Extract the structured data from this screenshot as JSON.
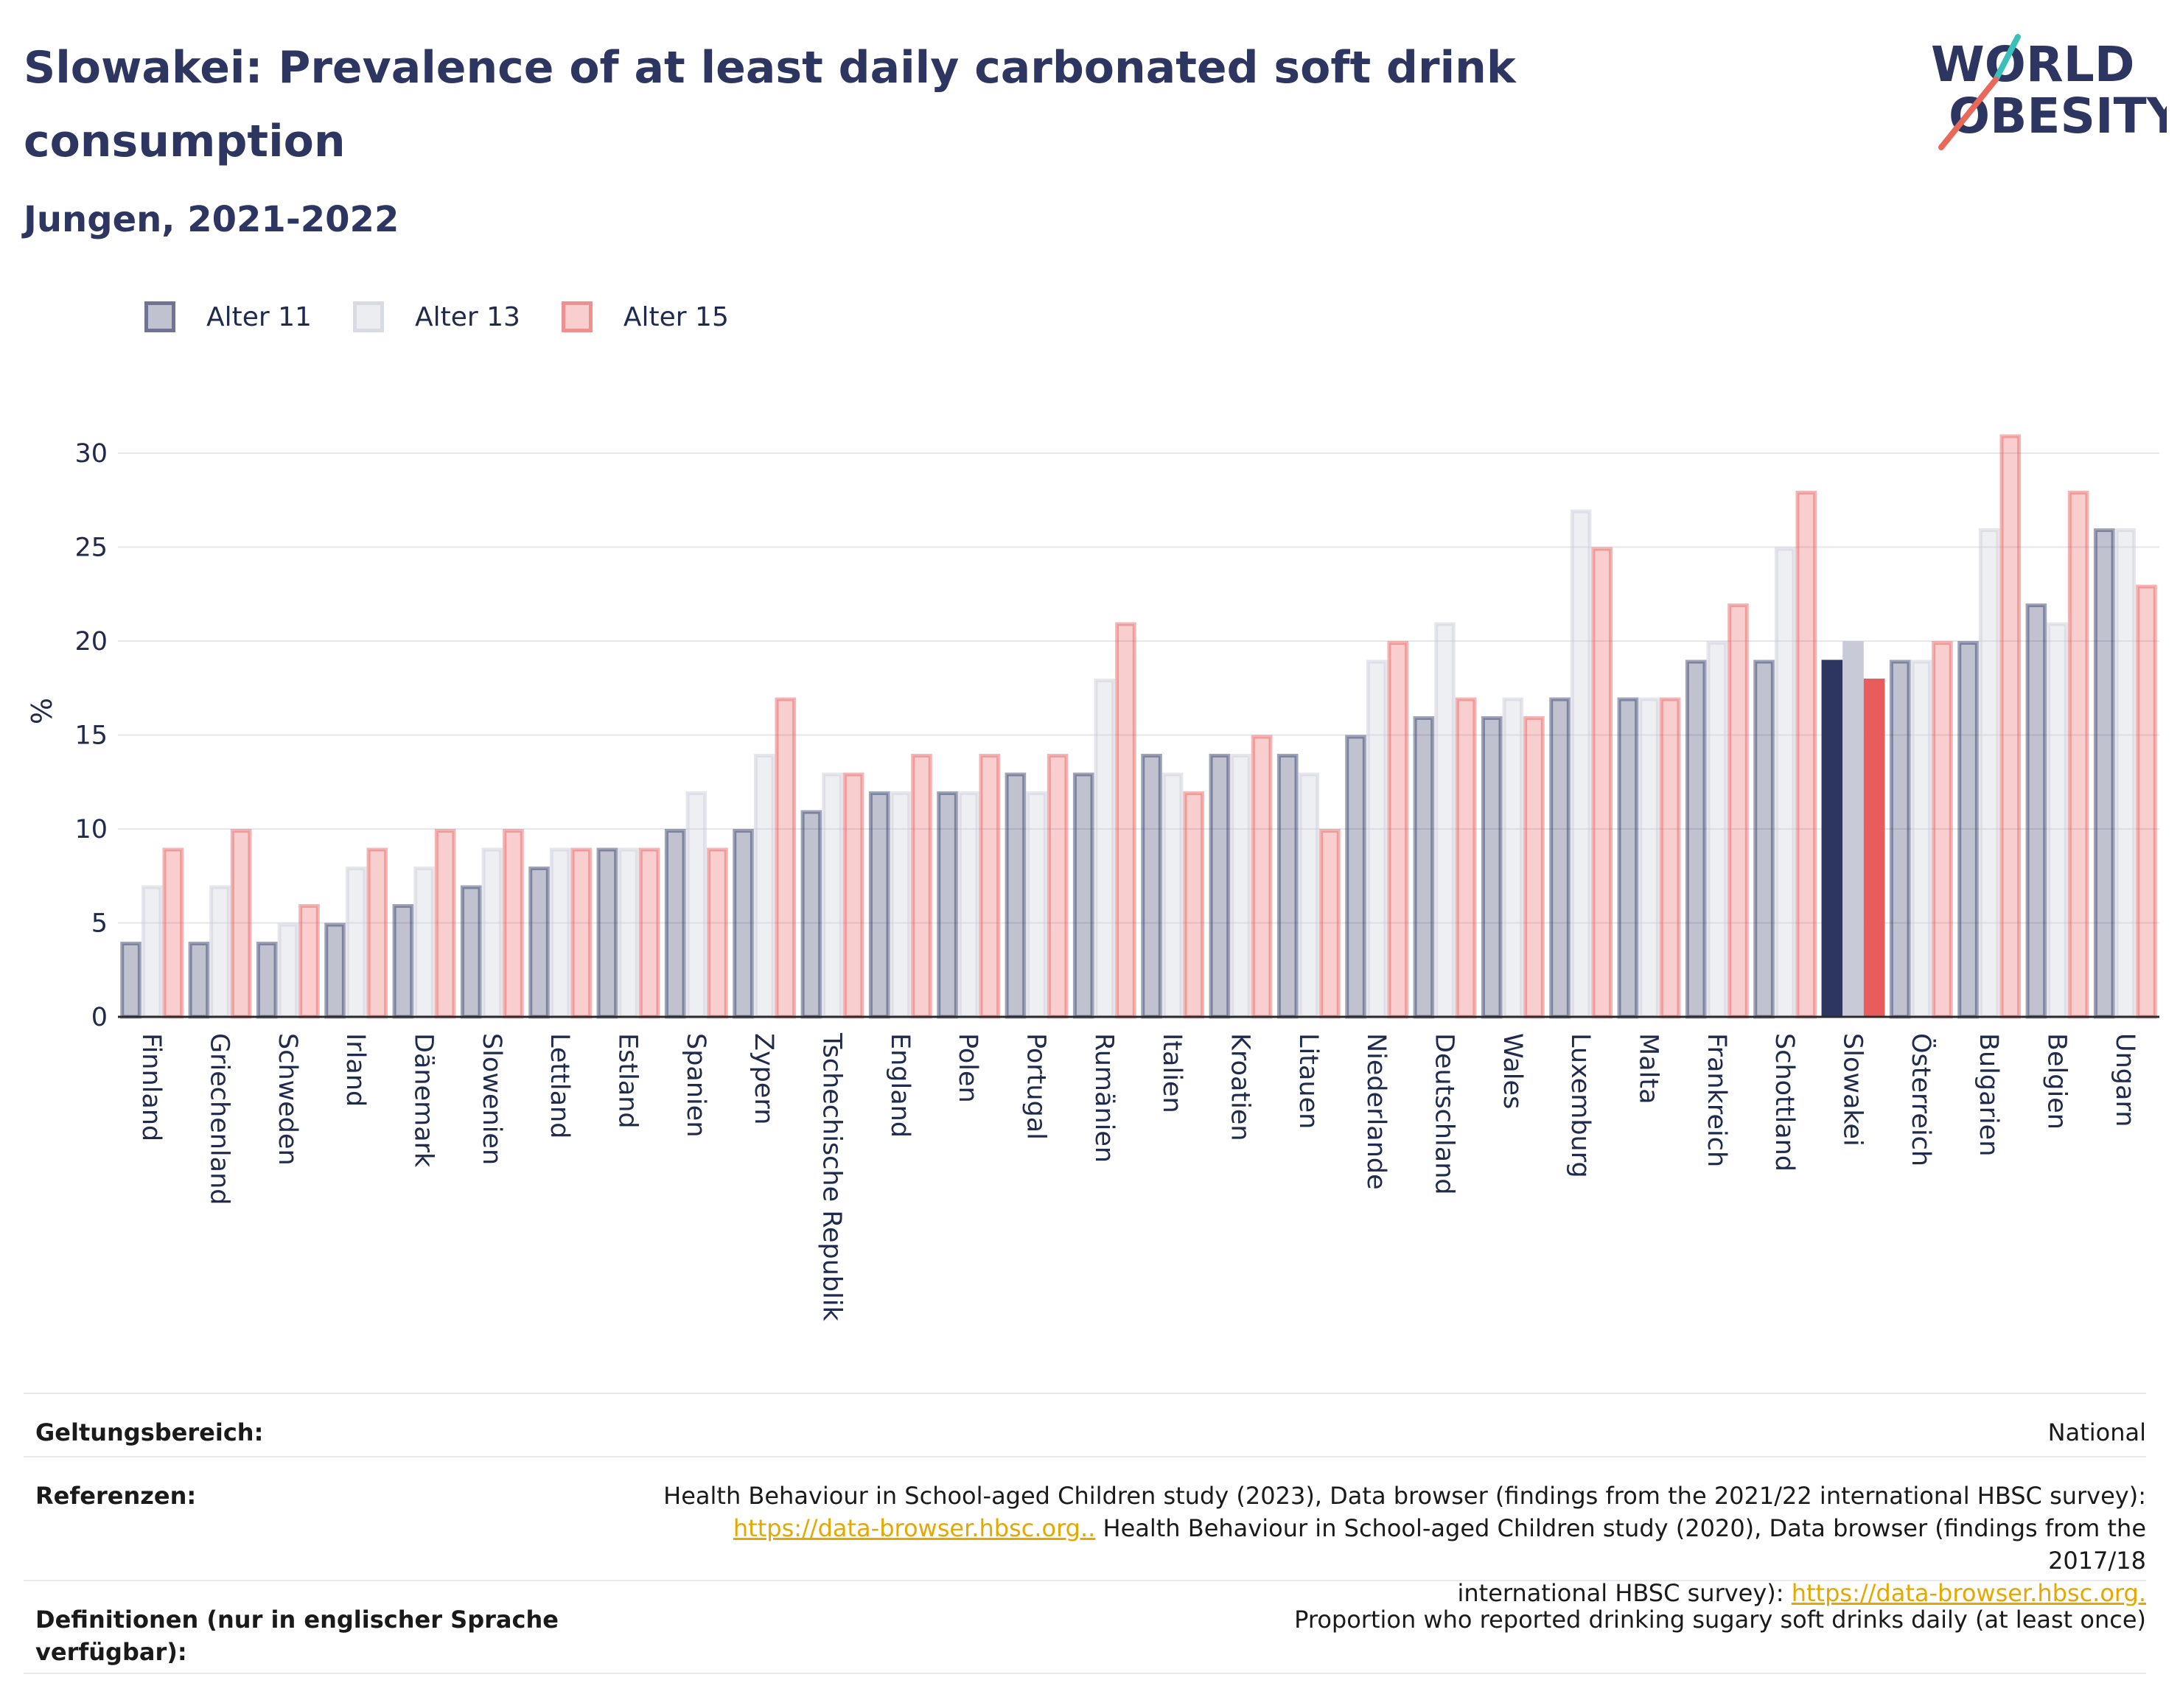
{
  "header": {
    "title": "Slowakei: Prevalence of at least daily carbonated soft drink consumption",
    "subtitle": "Jungen, 2021-2022",
    "logo_line1": "WORLD",
    "logo_line2": "OBESITY"
  },
  "legend": {
    "items": [
      {
        "label": "Alter 11",
        "color": "#2d3561"
      },
      {
        "label": "Alter 13",
        "color": "#c8cad8"
      },
      {
        "label": "Alter 15",
        "color": "#e85c5c"
      }
    ]
  },
  "chart_data": {
    "type": "bar",
    "ylabel": "%",
    "xlabel": "",
    "ylim": [
      0,
      32
    ],
    "yticks": [
      0,
      5,
      10,
      15,
      20,
      25,
      30
    ],
    "grid": true,
    "highlight": "Slowakei",
    "categories": [
      "Finnland",
      "Griechenland",
      "Schweden",
      "Irland",
      "Dänemark",
      "Slowenien",
      "Lettland",
      "Estland",
      "Spanien",
      "Zypern",
      "Tschechische Republik",
      "England",
      "Polen",
      "Portugal",
      "Rumänien",
      "Italien",
      "Kroatien",
      "Litauen",
      "Niederlande",
      "Deutschland",
      "Wales",
      "Luxemburg",
      "Malta",
      "Frankreich",
      "Schottland",
      "Slowakei",
      "Österreich",
      "Bulgarien",
      "Belgien",
      "Ungarn"
    ],
    "series": [
      {
        "name": "Alter 11",
        "color": "#2d3561",
        "values": [
          4,
          4,
          4,
          5,
          6,
          7,
          8,
          9,
          10,
          10,
          11,
          12,
          12,
          13,
          13,
          14,
          14,
          14,
          15,
          16,
          16,
          17,
          17,
          19,
          19,
          19,
          19,
          20,
          22,
          26
        ]
      },
      {
        "name": "Alter 13",
        "color": "#c8cad8",
        "values": [
          7,
          7,
          5,
          8,
          8,
          9,
          9,
          9,
          12,
          14,
          13,
          12,
          12,
          12,
          18,
          13,
          14,
          13,
          19,
          21,
          17,
          27,
          17,
          20,
          25,
          20,
          19,
          26,
          21,
          26
        ]
      },
      {
        "name": "Alter 15",
        "color": "#e85c5c",
        "values": [
          9,
          10,
          6,
          9,
          10,
          10,
          9,
          9,
          9,
          17,
          13,
          14,
          14,
          14,
          21,
          12,
          15,
          10,
          20,
          17,
          16,
          25,
          17,
          22,
          28,
          18,
          20,
          31,
          28,
          23
        ]
      }
    ]
  },
  "meta": {
    "scope_label": "Geltungsbereich:",
    "scope_value": "National",
    "refs_label": "Referenzen:",
    "refs_text1": "Health Behaviour in School-aged Children study (2023), Data browser (findings from the 2021/22 international HBSC survey):",
    "refs_link1": "https://data-browser.hbsc.org..",
    "refs_text2": " Health Behaviour in School-aged Children study (2020), Data browser (findings from the 2017/18",
    "refs_text3": "international HBSC survey): ",
    "refs_link2": "https://data-browser.hbsc.org.",
    "defs_label": "Definitionen (nur in englischer Sprache verfügbar):",
    "defs_value": "Proportion who reported drinking sugary soft drinks daily (at least once)"
  }
}
